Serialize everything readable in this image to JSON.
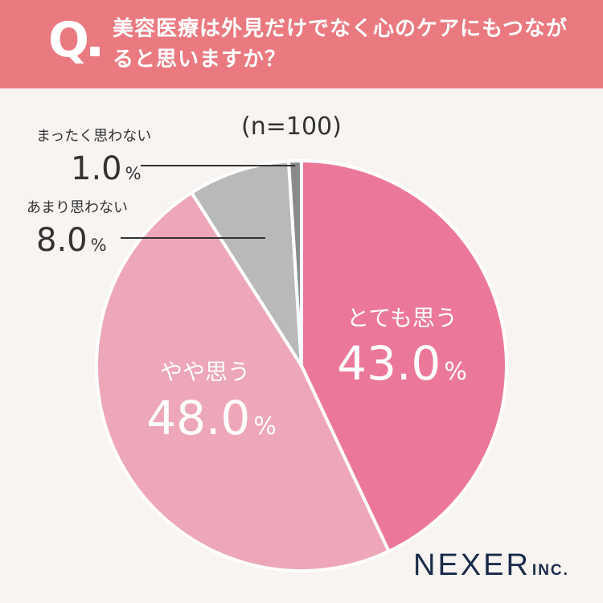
{
  "header": {
    "q_mark": "Q",
    "question": "美容医療は外見だけでなく心のケアにもつながると思いますか？"
  },
  "n_label": "(n=100)",
  "brand": {
    "name": "NEXER",
    "suffix": "INC."
  },
  "colors": {
    "header_bg": "#ea7a80",
    "background": "#f8f4f2",
    "slice_1": "#ec7899",
    "slice_2": "#eda7b8",
    "slice_3": "#b9b9b9",
    "slice_4": "#8a8a8a",
    "brand": "#1a2a4a"
  },
  "chart_data": {
    "type": "pie",
    "title": "美容医療は外見だけでなく心のケアにもつながると思いますか？",
    "subtitle": "(n=100)",
    "unit": "%",
    "slices": [
      {
        "label": "とても思う",
        "value": 43.0,
        "color": "#ec7899",
        "display": "43.0"
      },
      {
        "label": "やや思う",
        "value": 48.0,
        "color": "#eda7b8",
        "display": "48.0"
      },
      {
        "label": "あまり思わない",
        "value": 8.0,
        "color": "#b9b9b9",
        "display": "8.0"
      },
      {
        "label": "まったく思わない",
        "value": 1.0,
        "color": "#8a8a8a",
        "display": "1.0"
      }
    ]
  }
}
